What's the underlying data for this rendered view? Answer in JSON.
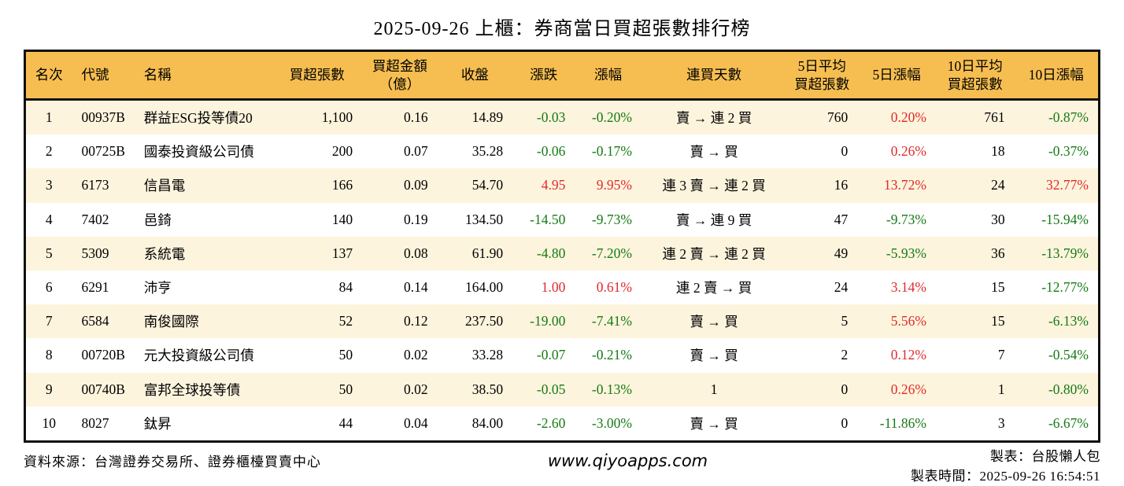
{
  "title": "2025-09-26 上櫃：券商當日買超張數排行榜",
  "colors": {
    "up": "#e02a2a",
    "down": "#157a15",
    "header_bg": "#f6be51",
    "row_alt": "#fdf4dd"
  },
  "table": {
    "columns": [
      {
        "key": "rank",
        "label": "名次",
        "align": "center",
        "signed": false
      },
      {
        "key": "code",
        "label": "代號",
        "align": "left",
        "signed": false
      },
      {
        "key": "name",
        "label": "名稱",
        "align": "left",
        "signed": false
      },
      {
        "key": "net_buy",
        "label": "買超張數",
        "align": "right",
        "signed": false
      },
      {
        "key": "net_amount",
        "label": "買超金額\n（億）",
        "align": "right",
        "signed": false
      },
      {
        "key": "close",
        "label": "收盤",
        "align": "right",
        "signed": false
      },
      {
        "key": "change",
        "label": "漲跌",
        "align": "right",
        "signed": true
      },
      {
        "key": "change_pct",
        "label": "漲幅",
        "align": "right",
        "signed": true
      },
      {
        "key": "streak",
        "label": "連買天數",
        "align": "center",
        "signed": false
      },
      {
        "key": "avg5",
        "label": "5日平均\n買超張數",
        "align": "right",
        "signed": false
      },
      {
        "key": "pct5",
        "label": "5日漲幅",
        "align": "right",
        "signed": true
      },
      {
        "key": "avg10",
        "label": "10日平均\n買超張數",
        "align": "right",
        "signed": false
      },
      {
        "key": "pct10",
        "label": "10日漲幅",
        "align": "right",
        "signed": true
      }
    ],
    "rows": [
      {
        "rank": "1",
        "code": "00937B",
        "name": "群益ESG投等債20",
        "net_buy": "1,100",
        "net_amount": "0.16",
        "close": "14.89",
        "change": "-0.03",
        "change_pct": "-0.20%",
        "streak": "賣 → 連 2 買",
        "avg5": "760",
        "pct5": "0.20%",
        "avg10": "761",
        "pct10": "-0.87%"
      },
      {
        "rank": "2",
        "code": "00725B",
        "name": "國泰投資級公司債",
        "net_buy": "200",
        "net_amount": "0.07",
        "close": "35.28",
        "change": "-0.06",
        "change_pct": "-0.17%",
        "streak": "賣 → 買",
        "avg5": "0",
        "pct5": "0.26%",
        "avg10": "18",
        "pct10": "-0.37%"
      },
      {
        "rank": "3",
        "code": "6173",
        "name": "信昌電",
        "net_buy": "166",
        "net_amount": "0.09",
        "close": "54.70",
        "change": "4.95",
        "change_pct": "9.95%",
        "streak": "連 3 賣 → 連 2 買",
        "avg5": "16",
        "pct5": "13.72%",
        "avg10": "24",
        "pct10": "32.77%"
      },
      {
        "rank": "4",
        "code": "7402",
        "name": "邑錡",
        "net_buy": "140",
        "net_amount": "0.19",
        "close": "134.50",
        "change": "-14.50",
        "change_pct": "-9.73%",
        "streak": "賣 → 連 9 買",
        "avg5": "47",
        "pct5": "-9.73%",
        "avg10": "30",
        "pct10": "-15.94%"
      },
      {
        "rank": "5",
        "code": "5309",
        "name": "系統電",
        "net_buy": "137",
        "net_amount": "0.08",
        "close": "61.90",
        "change": "-4.80",
        "change_pct": "-7.20%",
        "streak": "連 2 賣 → 連 2 買",
        "avg5": "49",
        "pct5": "-5.93%",
        "avg10": "36",
        "pct10": "-13.79%"
      },
      {
        "rank": "6",
        "code": "6291",
        "name": "沛亨",
        "net_buy": "84",
        "net_amount": "0.14",
        "close": "164.00",
        "change": "1.00",
        "change_pct": "0.61%",
        "streak": "連 2 賣 → 買",
        "avg5": "24",
        "pct5": "3.14%",
        "avg10": "15",
        "pct10": "-12.77%"
      },
      {
        "rank": "7",
        "code": "6584",
        "name": "南俊國際",
        "net_buy": "52",
        "net_amount": "0.12",
        "close": "237.50",
        "change": "-19.00",
        "change_pct": "-7.41%",
        "streak": "賣 → 買",
        "avg5": "5",
        "pct5": "5.56%",
        "avg10": "15",
        "pct10": "-6.13%"
      },
      {
        "rank": "8",
        "code": "00720B",
        "name": "元大投資級公司債",
        "net_buy": "50",
        "net_amount": "0.02",
        "close": "33.28",
        "change": "-0.07",
        "change_pct": "-0.21%",
        "streak": "賣 → 買",
        "avg5": "2",
        "pct5": "0.12%",
        "avg10": "7",
        "pct10": "-0.54%"
      },
      {
        "rank": "9",
        "code": "00740B",
        "name": "富邦全球投等債",
        "net_buy": "50",
        "net_amount": "0.02",
        "close": "38.50",
        "change": "-0.05",
        "change_pct": "-0.13%",
        "streak": "1",
        "avg5": "0",
        "pct5": "0.26%",
        "avg10": "1",
        "pct10": "-0.80%"
      },
      {
        "rank": "10",
        "code": "8027",
        "name": "鈦昇",
        "net_buy": "44",
        "net_amount": "0.04",
        "close": "84.00",
        "change": "-2.60",
        "change_pct": "-3.00%",
        "streak": "賣 → 買",
        "avg5": "0",
        "pct5": "-11.86%",
        "avg10": "3",
        "pct10": "-6.67%"
      }
    ]
  },
  "footer": {
    "source": "資料來源：台灣證券交易所、證券櫃檯買賣中心",
    "website": "www.qiyoapps.com",
    "made_by": "製表：台股懶人包",
    "made_time": "製表時間：2025-09-26 16:54:51"
  }
}
